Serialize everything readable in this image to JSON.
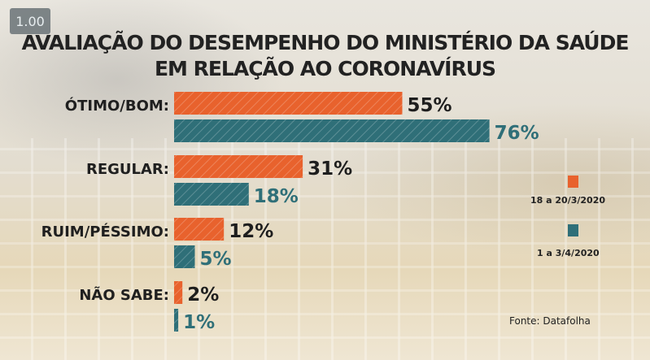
{
  "zoom_badge": "1.00",
  "chart_data": {
    "type": "bar",
    "orientation": "horizontal",
    "title_lines": [
      "AVALIAÇÃO DO DESEMPENHO DO MINISTÉRIO DA SAÚDE",
      "EM RELAÇÃO AO CORONAVÍRUS"
    ],
    "categories": [
      "ÓTIMO/BOM:",
      "REGULAR:",
      "RUIM/PÉSSIMO:",
      "NÃO SABE:"
    ],
    "series": [
      {
        "name": "18 a 20/3/2020",
        "color": "#e8622d",
        "values": [
          55,
          31,
          12,
          2
        ],
        "labels": [
          "55%",
          "31%",
          "12%",
          "2%"
        ]
      },
      {
        "name": "1 a 3/4/2020",
        "color": "#2f6f78",
        "values": [
          76,
          18,
          5,
          1
        ],
        "labels": [
          "76%",
          "18%",
          "5%",
          "1%"
        ]
      }
    ],
    "xlim": [
      0,
      100
    ],
    "legend_position": "right",
    "source": "Fonte: Datafolha"
  }
}
